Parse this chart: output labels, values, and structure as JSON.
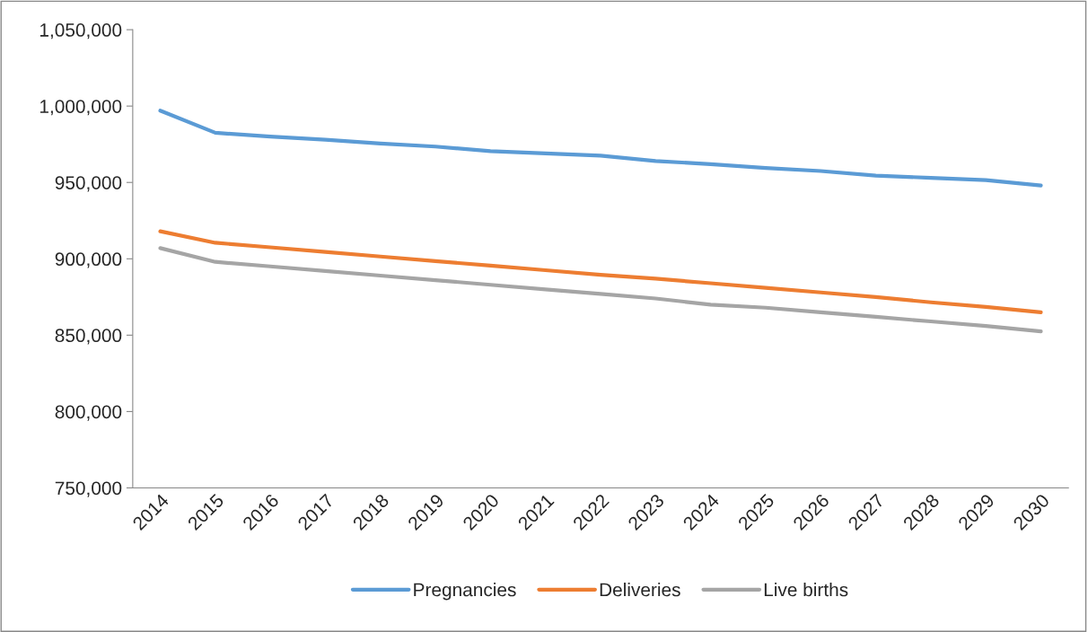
{
  "chart_data": {
    "type": "line",
    "categories": [
      "2014",
      "2015",
      "2016",
      "2017",
      "2018",
      "2019",
      "2020",
      "2021",
      "2022",
      "2023",
      "2024",
      "2025",
      "2026",
      "2027",
      "2028",
      "2029",
      "2030"
    ],
    "series": [
      {
        "name": "Pregnancies",
        "color": "#5b9bd5",
        "values": [
          997000,
          982500,
          980000,
          978000,
          975500,
          973500,
          970500,
          969000,
          967500,
          964000,
          962000,
          959500,
          957500,
          954500,
          953000,
          951500,
          948000
        ]
      },
      {
        "name": "Deliveries",
        "color": "#ed7d31",
        "values": [
          918000,
          910500,
          907500,
          904500,
          901500,
          898500,
          895500,
          892500,
          889500,
          887000,
          884000,
          881000,
          878000,
          875000,
          871500,
          868500,
          865000
        ]
      },
      {
        "name": "Live births",
        "color": "#a5a5a5",
        "values": [
          907000,
          898000,
          895000,
          892000,
          889000,
          886000,
          883000,
          880000,
          877000,
          874000,
          870000,
          868000,
          865000,
          862000,
          859000,
          856000,
          852500
        ]
      }
    ],
    "ylim": [
      750000,
      1050000
    ],
    "yticks": [
      {
        "value": 750000,
        "label": "750,000"
      },
      {
        "value": 800000,
        "label": "800,000"
      },
      {
        "value": 850000,
        "label": "850,000"
      },
      {
        "value": 900000,
        "label": "900,000"
      },
      {
        "value": 950000,
        "label": "950,000"
      },
      {
        "value": 1000000,
        "label": "1,000,000"
      },
      {
        "value": 1050000,
        "label": "1,050,000"
      }
    ],
    "grid": false,
    "legend": "bottom",
    "marker": "none",
    "line_style": "solid"
  }
}
